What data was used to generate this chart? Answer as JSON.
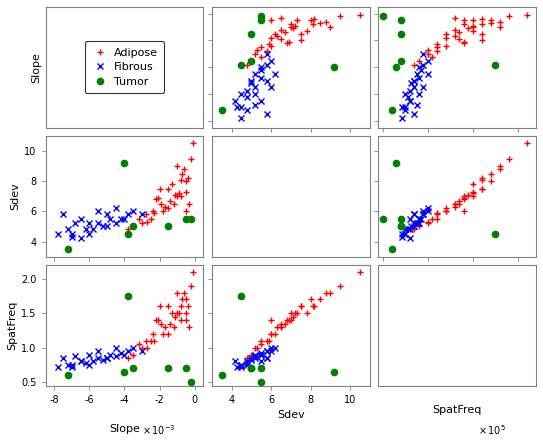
{
  "adipose_slope": [
    -0.5,
    -1.0,
    -1.5,
    -2.0,
    -0.5,
    -1.0,
    -0.3,
    -0.8,
    -1.2,
    -1.8,
    -2.5,
    -3.0,
    -0.2,
    -0.7,
    -1.3,
    -2.2,
    -3.5,
    -1.5,
    -0.9,
    -2.8,
    -1.7,
    -0.4,
    -2.1,
    -3.2,
    -1.1,
    -2.4,
    -0.6,
    -1.9,
    -2.7,
    -0.1,
    -3.8,
    -0.5,
    -1.4,
    -2.3,
    -0.8
  ],
  "adipose_sdev": [
    6.0,
    7.0,
    7.5,
    7.5,
    8.0,
    9.0,
    6.5,
    7.0,
    6.5,
    6.0,
    5.5,
    5.2,
    9.5,
    8.5,
    7.8,
    6.8,
    5.0,
    6.2,
    7.2,
    5.8,
    6.3,
    8.2,
    6.9,
    5.5,
    7.1,
    6.0,
    8.8,
    6.5,
    5.3,
    10.5,
    4.8,
    7.3,
    6.7,
    5.9,
    8.1
  ],
  "adipose_spatfreq": [
    1.4,
    1.5,
    1.6,
    1.6,
    1.7,
    1.8,
    1.3,
    1.4,
    1.3,
    1.2,
    1.1,
    1.0,
    1.9,
    1.7,
    1.5,
    1.4,
    0.9,
    1.2,
    1.5,
    1.1,
    1.3,
    1.6,
    1.4,
    1.05,
    1.45,
    1.2,
    1.8,
    1.35,
    1.0,
    2.1,
    0.85,
    1.5,
    1.35,
    1.1,
    1.6
  ],
  "fibrous_slope": [
    -7.5,
    -6.5,
    -7.0,
    -6.0,
    -5.5,
    -5.0,
    -4.5,
    -4.0,
    -3.5,
    -6.5,
    -5.0,
    -7.2,
    -4.2,
    -5.8,
    -6.8,
    -7.8,
    -3.0,
    -5.5,
    -6.2,
    -4.8,
    -6.0,
    -5.2,
    -3.8,
    -7.0,
    -4.5
  ],
  "fibrous_sdev": [
    5.8,
    5.5,
    4.5,
    5.2,
    6.0,
    5.8,
    6.2,
    5.5,
    6.0,
    4.2,
    5.0,
    4.8,
    5.5,
    4.8,
    5.2,
    4.5,
    5.8,
    5.2,
    4.8,
    5.5,
    4.5,
    5.0,
    5.8,
    4.3,
    5.2
  ],
  "fibrous_spatfreq": [
    0.85,
    0.8,
    0.75,
    0.9,
    0.95,
    0.85,
    1.0,
    0.9,
    1.0,
    0.8,
    0.85,
    0.75,
    0.92,
    0.8,
    0.88,
    0.72,
    0.95,
    0.85,
    0.78,
    0.9,
    0.75,
    0.82,
    0.95,
    0.72,
    0.88
  ],
  "tumor_slope": [
    -7.2,
    -3.8,
    -0.5,
    -4.0,
    -3.5,
    -1.5,
    -0.2
  ],
  "tumor_sdev": [
    3.5,
    4.5,
    5.5,
    9.2,
    5.0,
    5.0,
    5.5
  ],
  "tumor_spatfreq": [
    0.6,
    1.75,
    0.7,
    0.65,
    0.7,
    0.7,
    0.5
  ],
  "slope_lim": [
    -8.5,
    0.5
  ],
  "sdev_lim": [
    3.0,
    11.0
  ],
  "spatfreq_lim": [
    0.45,
    2.2
  ],
  "slope_ticks": [
    -8,
    -6,
    -4,
    -2,
    0
  ],
  "sdev_ticks": [
    4,
    6,
    8,
    10
  ],
  "spatfreq_ticks": [
    0.5,
    1.0,
    1.5,
    2.0
  ],
  "bg_color": "white",
  "adipose_color": "red",
  "fibrous_color": "blue",
  "tumor_color": "green",
  "marker_adipose": "+",
  "marker_fibrous": "x",
  "marker_tumor": "o",
  "title_fontsize": 7,
  "tick_fontsize": 7,
  "label_fontsize": 8
}
